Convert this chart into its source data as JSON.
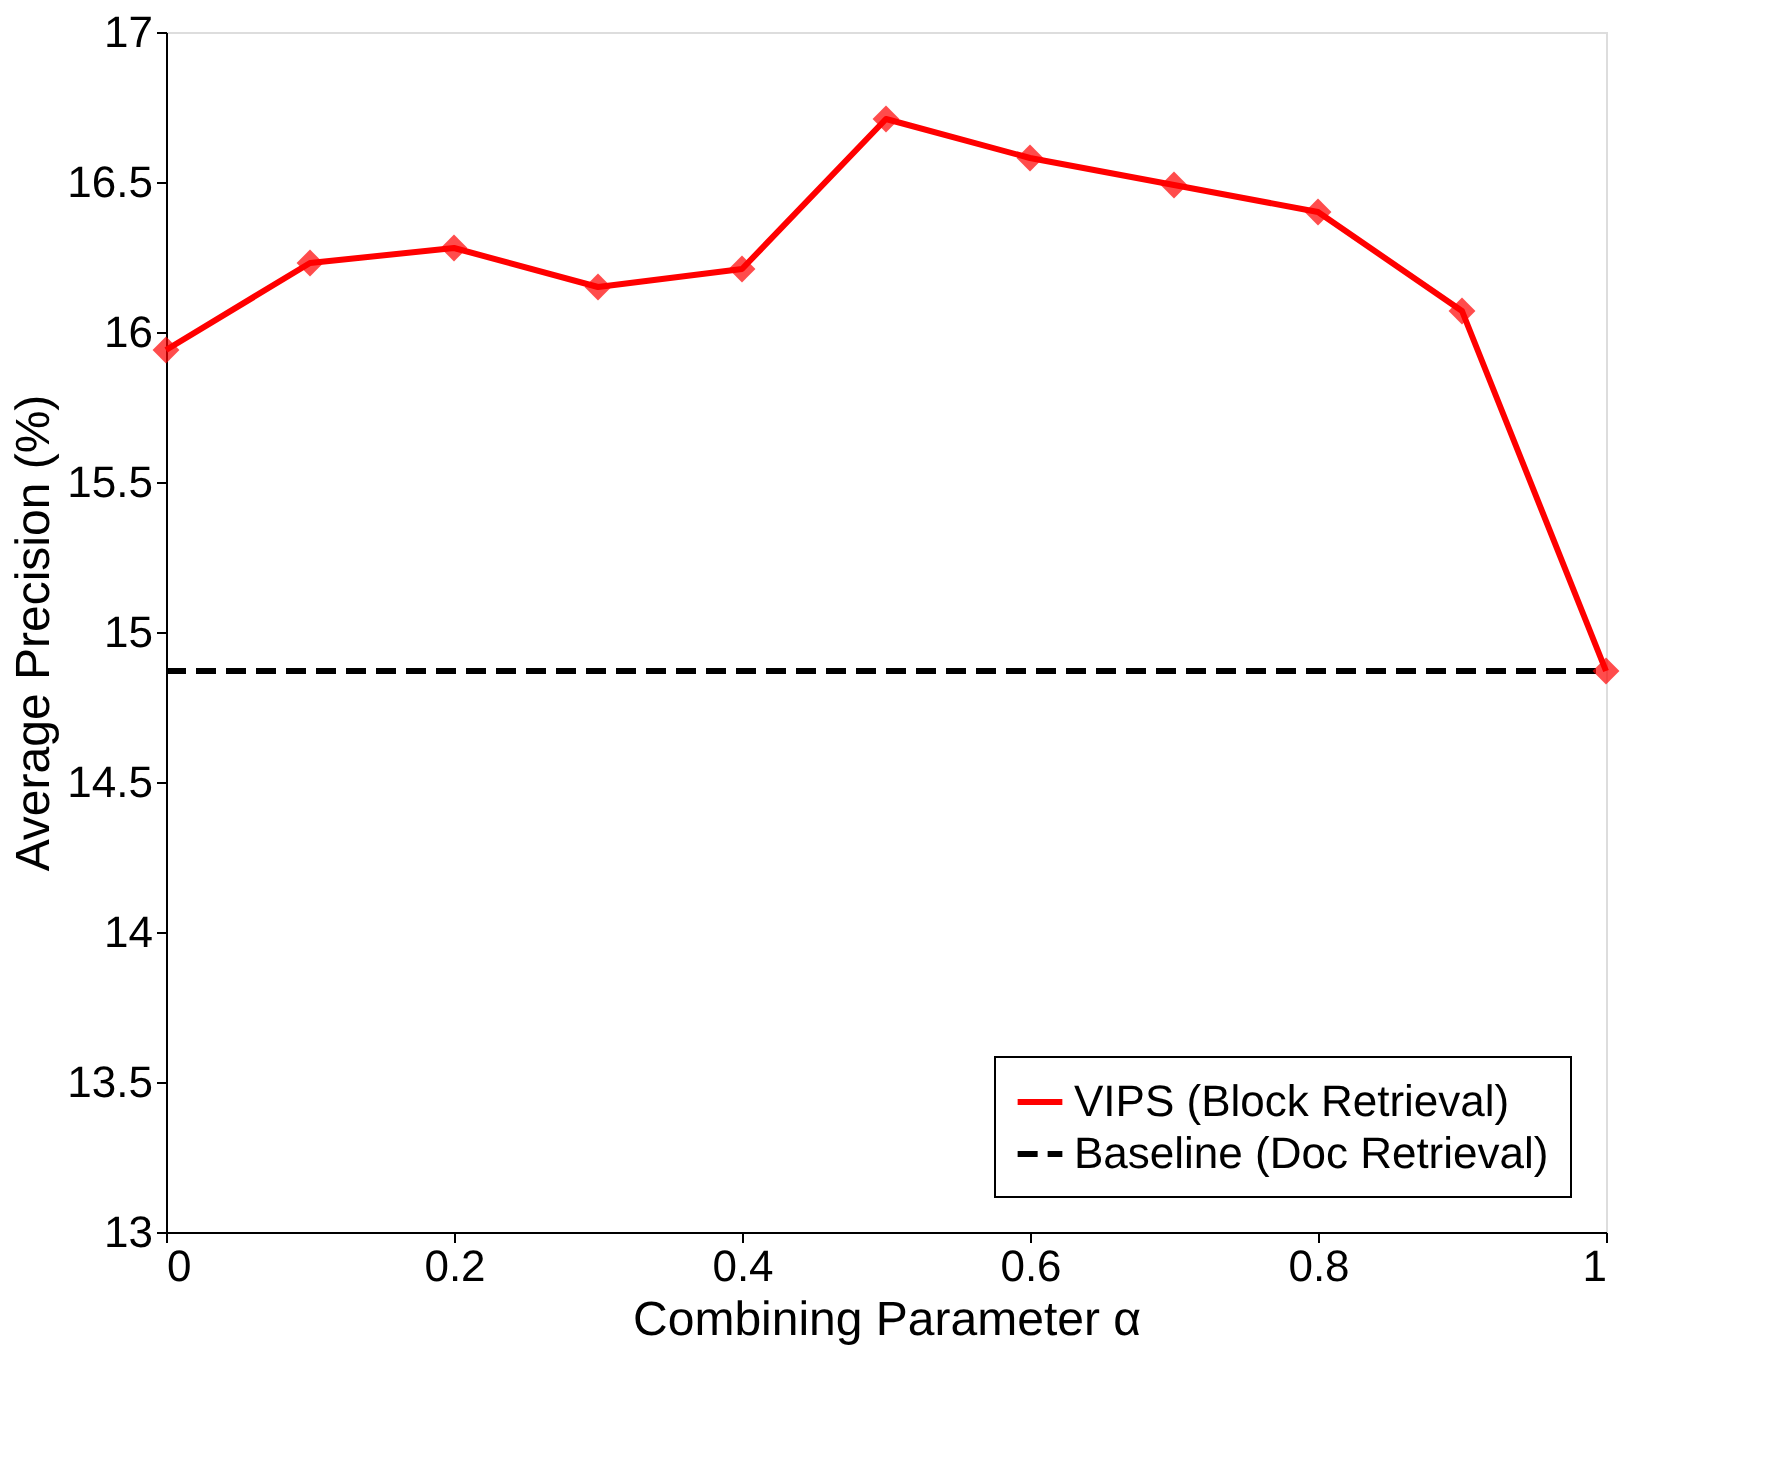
{
  "chart_data": {
    "type": "line",
    "xlabel": "Combining Parameter α",
    "ylabel": "Average Precision (%)",
    "x": [
      0,
      0.1,
      0.2,
      0.3,
      0.4,
      0.5,
      0.6,
      0.7,
      0.8,
      0.9,
      1
    ],
    "series": [
      {
        "name": "VIPS (Block Retrieval)",
        "color": "#ff0000",
        "marker": "diamond",
        "line_style": "solid",
        "values": [
          15.94,
          16.23,
          16.28,
          16.15,
          16.21,
          16.71,
          16.58,
          16.49,
          16.4,
          16.07,
          14.87
        ]
      },
      {
        "name": "Baseline (Doc Retrieval)",
        "color": "#000000",
        "marker": "none",
        "line_style": "dashed",
        "x": [
          0,
          1
        ],
        "values": [
          14.87,
          14.87
        ]
      }
    ],
    "xlim": [
      0,
      1
    ],
    "xticks": [
      0,
      0.2,
      0.4,
      0.6,
      0.8,
      1
    ],
    "ylim": [
      13,
      17
    ],
    "yticks": [
      13,
      13.5,
      14,
      14.5,
      15,
      15.5,
      16,
      16.5,
      17
    ],
    "grid": false,
    "legend": "bottom right"
  }
}
